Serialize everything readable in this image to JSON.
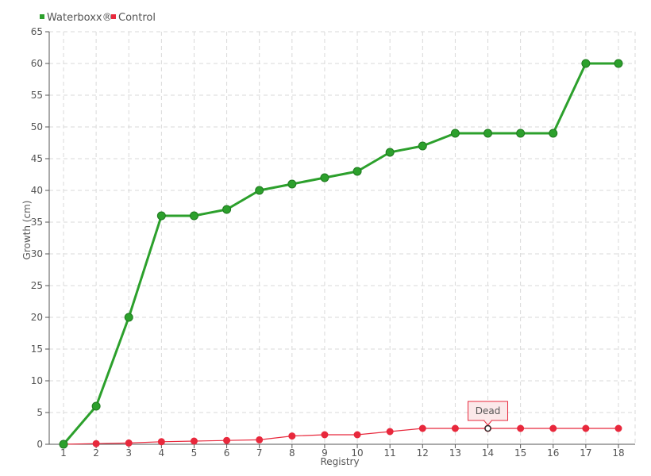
{
  "chart_data": {
    "type": "line",
    "xlabel": "Registry",
    "ylabel": "Growth (cm)",
    "categories": [
      "1",
      "2",
      "3",
      "4",
      "5",
      "6",
      "7",
      "8",
      "9",
      "10",
      "11",
      "12",
      "13",
      "14",
      "15",
      "16",
      "17",
      "18"
    ],
    "ylim": [
      0,
      65
    ],
    "yticks": [
      0,
      5,
      10,
      15,
      20,
      25,
      30,
      35,
      40,
      45,
      50,
      55,
      60,
      65
    ],
    "grid": true,
    "legend_position": "top-left",
    "series": [
      {
        "name": "Waterboxx®",
        "color": "#2ca02c",
        "values": [
          0,
          6,
          20,
          36,
          36,
          37,
          40,
          41,
          42,
          43,
          46,
          47,
          49,
          49,
          49,
          49,
          60,
          60
        ]
      },
      {
        "name": "Control",
        "color": "#e8283c",
        "values": [
          0,
          0.1,
          0.2,
          0.4,
          0.5,
          0.6,
          0.7,
          1.3,
          1.5,
          1.5,
          2.0,
          2.5,
          2.5,
          2.5,
          2.5,
          2.5,
          2.5,
          2.5
        ]
      }
    ],
    "annotations": [
      {
        "series": "Control",
        "category": "14",
        "text": "Dead"
      }
    ]
  }
}
